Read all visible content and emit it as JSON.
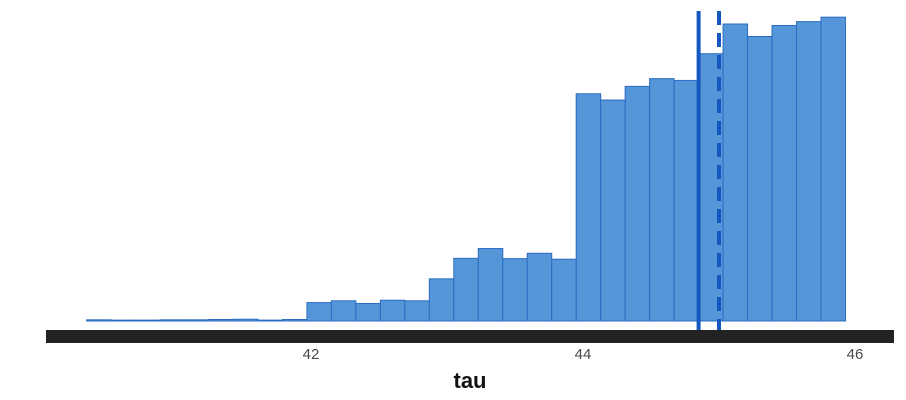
{
  "chart_data": {
    "type": "histogram",
    "title": "",
    "xlabel": "tau",
    "ylabel": "",
    "xlim": [
      40.1,
      46.2
    ],
    "ylim": [
      0,
      100
    ],
    "bin_width": 0.18,
    "bins_start": 40.35,
    "counts": [
      0.4,
      0.3,
      0.3,
      0.4,
      0.4,
      0.5,
      0.6,
      0.3,
      0.5,
      6.2,
      6.8,
      5.9,
      7.0,
      6.8,
      14.2,
      21.1,
      24.4,
      21.0,
      22.8,
      20.8,
      76.5,
      74.4,
      79.0,
      81.6,
      81.0,
      90.0,
      100.0,
      95.8,
      99.5,
      100.8,
      102.3
    ],
    "x_ticks": [
      42,
      44,
      46
    ],
    "x_tick_labels": [
      "42",
      "44",
      "46"
    ],
    "colors": {
      "bar_fill": "#5596d8",
      "bar_edge": "#2a6cc2",
      "reference_line": "#1557c0",
      "axis_bar": "#222222"
    },
    "reference_lines": [
      {
        "name": "solid",
        "x": 44.85,
        "style": "solid"
      },
      {
        "name": "dashed",
        "x": 45.0,
        "style": "dashed"
      }
    ]
  }
}
